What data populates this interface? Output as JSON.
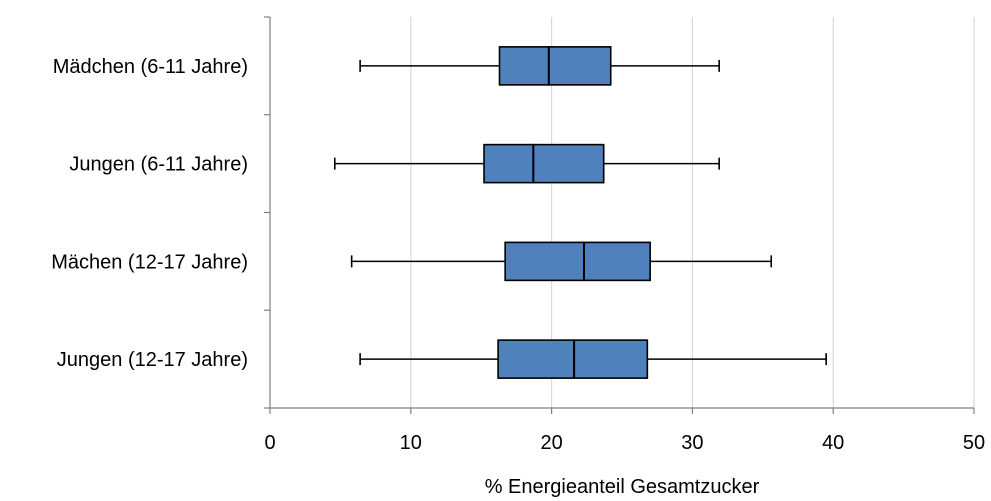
{
  "chart_data": {
    "type": "boxplot",
    "orientation": "horizontal",
    "title": "",
    "xlabel": "% Energieanteil Gesamtzucker",
    "ylabel": "",
    "xlim": [
      0,
      50
    ],
    "xticks": [
      0,
      10,
      20,
      30,
      40,
      50
    ],
    "grid": "vertical",
    "legend": "none",
    "box_color": "#4F81BD",
    "categories": [
      {
        "label": "Mädchen (6-11 Jahre)",
        "min": 6.4,
        "q1": 16.3,
        "median": 19.8,
        "q3": 24.2,
        "max": 31.9
      },
      {
        "label": "Jungen (6-11 Jahre)",
        "min": 4.6,
        "q1": 15.2,
        "median": 18.7,
        "q3": 23.7,
        "max": 31.9
      },
      {
        "label": "Mächen (12-17 Jahre)",
        "min": 5.8,
        "q1": 16.7,
        "median": 22.3,
        "q3": 27.0,
        "max": 35.6
      },
      {
        "label": "Jungen (12-17 Jahre)",
        "min": 6.4,
        "q1": 16.2,
        "median": 21.6,
        "q3": 26.8,
        "max": 39.5
      }
    ]
  }
}
